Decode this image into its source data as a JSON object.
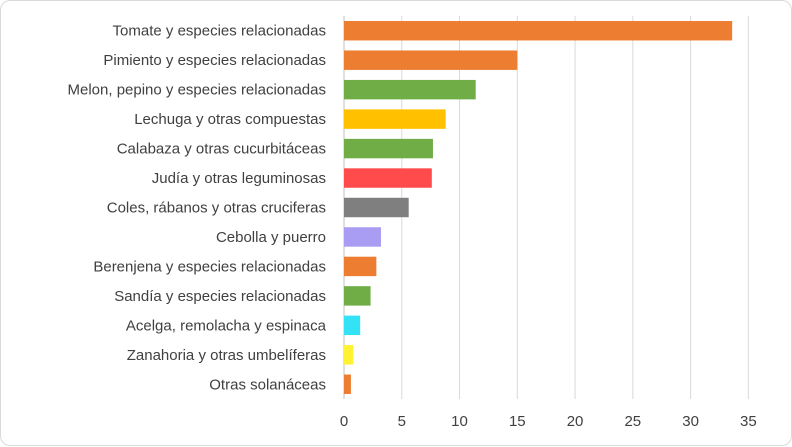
{
  "chart_data": {
    "type": "bar",
    "orientation": "horizontal",
    "title": "",
    "xlabel": "",
    "ylabel": "",
    "xlim": [
      0,
      38
    ],
    "x_ticks": [
      0,
      5,
      10,
      15,
      20,
      25,
      30,
      35
    ],
    "grid": "vertical",
    "legend": "none",
    "categories": [
      "Tomate y especies relacionadas",
      "Pimiento y especies relacionadas",
      "Melon, pepino y especies relacionadas",
      "Lechuga y otras compuestas",
      "Calabaza y otras cucurbitáceas",
      "Judía y otras leguminosas",
      "Coles, rábanos y otras cruciferas",
      "Cebolla y puerro",
      "Berenjena y especies relacionadas",
      "Sandía y especies relacionadas",
      "Acelga, remolacha y espinaca",
      "Zanahoria y otras umbelíferas",
      "Otras solanáceas"
    ],
    "values": [
      33.6,
      15.0,
      11.4,
      8.8,
      7.7,
      7.6,
      5.6,
      3.2,
      2.8,
      2.3,
      1.4,
      0.8,
      0.6
    ],
    "colors": [
      "#ED7D31",
      "#ED7D31",
      "#70AD47",
      "#FFC000",
      "#70AD47",
      "#FF4B4B",
      "#7F7F7F",
      "#A99CF3",
      "#ED7D31",
      "#70AD47",
      "#33E3F5",
      "#FFF233",
      "#ED7D31"
    ]
  }
}
